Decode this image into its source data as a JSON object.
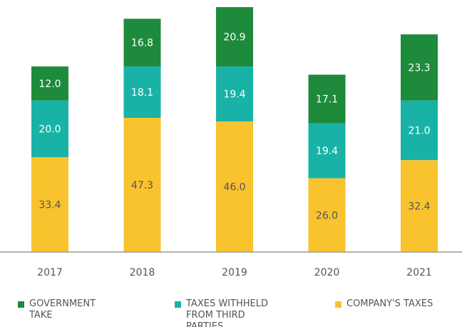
{
  "chart_data": {
    "type": "stacked_bar",
    "categories": [
      "2017",
      "2018",
      "2019",
      "2020",
      "2021"
    ],
    "series": [
      {
        "name": "GOVERNMENT TAKE",
        "color": "#1e8a3c",
        "values": [
          12,
          16.8,
          20.9,
          17.1,
          23.3
        ],
        "value_labels": [
          "12.0",
          "16.8",
          "20.9",
          "17.1",
          "23.3"
        ]
      },
      {
        "name": "TAXES WITHHELD FROM THIRD PARTIES",
        "color": "#19b2a6",
        "values": [
          20,
          18.1,
          19.4,
          19.4,
          21
        ],
        "value_labels": [
          "20.0",
          "18.1",
          "19.4",
          "19.4",
          "21.0"
        ]
      },
      {
        "name": "COMPANY'S TAXES",
        "color": "#f9c32e",
        "values": [
          33.4,
          47.3,
          46,
          26,
          32.4
        ],
        "value_labels": [
          "33.4",
          "47.3",
          "46.0",
          "26.0",
          "32.4"
        ]
      }
    ]
  }
}
